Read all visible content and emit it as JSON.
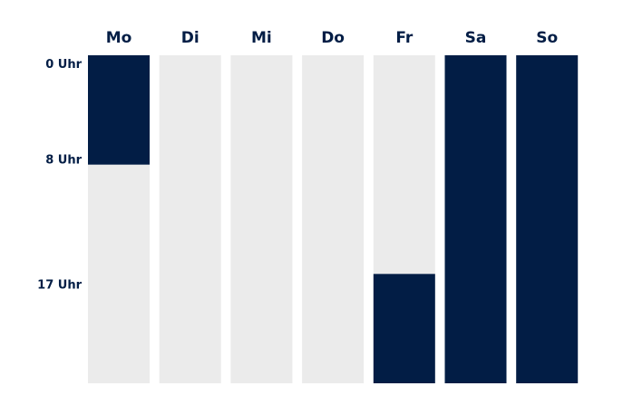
{
  "chart_data": {
    "type": "heatmap",
    "title": "",
    "xlabel": "",
    "ylabel": "",
    "categories": [
      "Mo",
      "Di",
      "Mi",
      "Do",
      "Fr",
      "Sa",
      "So"
    ],
    "y_ticks": [
      {
        "label": "0 Uhr",
        "hour": 0
      },
      {
        "label": "8 Uhr",
        "hour": 8
      },
      {
        "label": "17 Uhr",
        "hour": 17
      }
    ],
    "ylim": [
      0,
      24
    ],
    "y_direction": "top-to-bottom",
    "active_ranges": [
      {
        "day": "Mo",
        "start": 0,
        "end": 8
      },
      {
        "day": "Fr",
        "start": 16,
        "end": 24
      },
      {
        "day": "Sa",
        "start": 0,
        "end": 24
      },
      {
        "day": "So",
        "start": 0,
        "end": 24
      }
    ],
    "grid": false,
    "legend": "none"
  },
  "colors": {
    "active": "#021d45",
    "inactive": "#ebebeb",
    "text": "#021d45",
    "background": "#ffffff"
  }
}
